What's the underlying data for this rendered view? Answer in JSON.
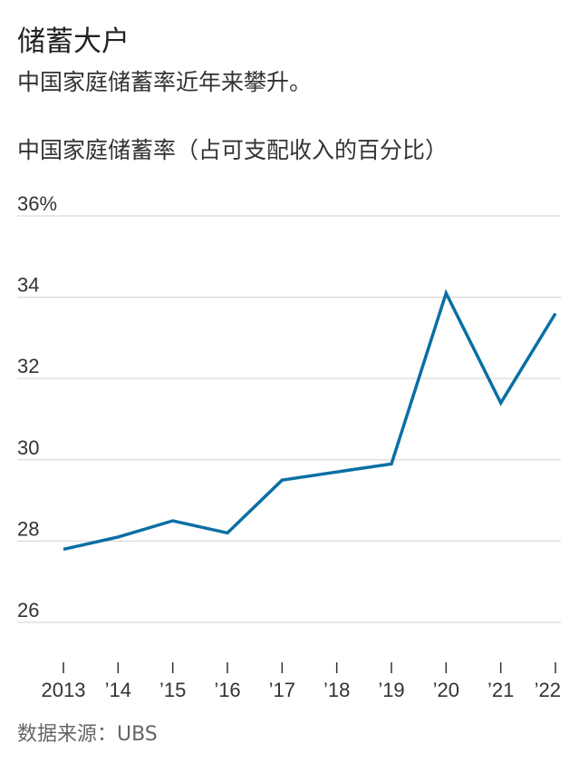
{
  "headline": "储蓄大户",
  "dek": "中国家庭储蓄率近年来攀升。",
  "source": "数据来源：UBS",
  "chart_data": {
    "type": "line",
    "title": "中国家庭储蓄率（占可支配收入的百分比）",
    "xlabel": "",
    "ylabel": "",
    "categories": [
      "2013",
      "’14",
      "’15",
      "’16",
      "’17",
      "’18",
      "’19",
      "’20",
      "’21",
      "’22"
    ],
    "x": [
      2013,
      2014,
      2015,
      2016,
      2017,
      2018,
      2019,
      2020,
      2021,
      2022
    ],
    "series": [
      {
        "values": [
          27.8,
          28.1,
          28.5,
          28.2,
          29.5,
          29.7,
          29.9,
          34.1,
          31.4,
          33.6
        ]
      }
    ],
    "y_ticks": [
      26,
      28,
      30,
      32,
      34,
      36
    ],
    "y_tick_labels": [
      "26",
      "28",
      "30",
      "32",
      "34",
      "36%"
    ],
    "ylim": [
      26,
      36
    ],
    "grid": true,
    "line_color": "#0a6fa4",
    "grid_color": "#d9d9d9"
  }
}
